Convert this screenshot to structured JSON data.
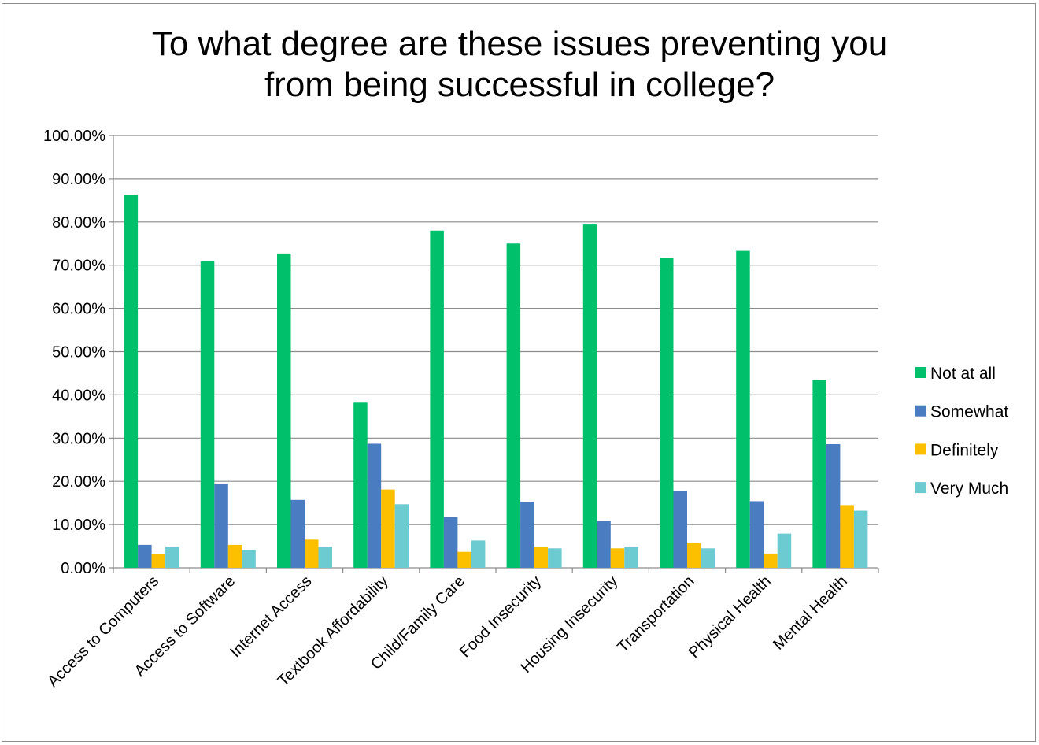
{
  "chart_data": {
    "type": "bar",
    "title_lines": [
      "To what degree are these issues preventing you",
      "from being successful in college?"
    ],
    "xlabel": "",
    "ylabel": "",
    "ylim": [
      0,
      100
    ],
    "y_ticks": [
      0,
      10,
      20,
      30,
      40,
      50,
      60,
      70,
      80,
      90,
      100
    ],
    "y_tick_labels": [
      "0.00%",
      "10.00%",
      "20.00%",
      "30.00%",
      "40.00%",
      "50.00%",
      "60.00%",
      "70.00%",
      "80.00%",
      "90.00%",
      "100.00%"
    ],
    "grid": true,
    "legend_position": "right",
    "categories": [
      "Access to Computers",
      "Access to Software",
      "Internet Access",
      "Textbook Affordability",
      "Child/Family Care",
      "Food Insecurity",
      "Housing Insecurity",
      "Transportation",
      "Physical Health",
      "Mental Health"
    ],
    "series": [
      {
        "name": "Not at all",
        "color": "#00c06b",
        "values": [
          86.3,
          70.9,
          72.7,
          38.2,
          78.0,
          75.0,
          79.4,
          71.7,
          73.3,
          43.5
        ]
      },
      {
        "name": "Somewhat",
        "color": "#4a7cc1",
        "values": [
          5.3,
          19.5,
          15.7,
          28.7,
          11.8,
          15.3,
          10.8,
          17.7,
          15.4,
          28.6
        ]
      },
      {
        "name": "Definitely",
        "color": "#fcc000",
        "values": [
          3.2,
          5.3,
          6.5,
          18.1,
          3.7,
          4.9,
          4.5,
          5.7,
          3.3,
          14.5
        ]
      },
      {
        "name": "Very Much",
        "color": "#6ccbd0",
        "values": [
          4.9,
          4.1,
          4.9,
          14.7,
          6.3,
          4.5,
          4.9,
          4.5,
          7.9,
          13.2
        ]
      }
    ]
  }
}
